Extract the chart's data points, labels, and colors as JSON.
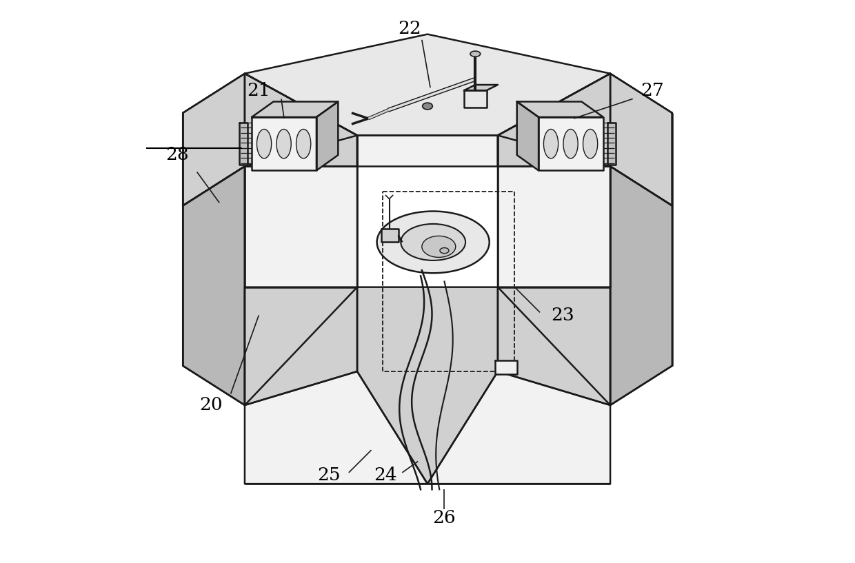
{
  "bg_color": "#ffffff",
  "line_color": "#1a1a1a",
  "fig_width": 12.4,
  "fig_height": 8.17,
  "lw_main": 1.8,
  "lw_thin": 1.1,
  "gray_top": "#e8e8e8",
  "gray_front": "#d0d0d0",
  "gray_side": "#b8b8b8",
  "gray_light": "#f2f2f2",
  "white": "#ffffff"
}
